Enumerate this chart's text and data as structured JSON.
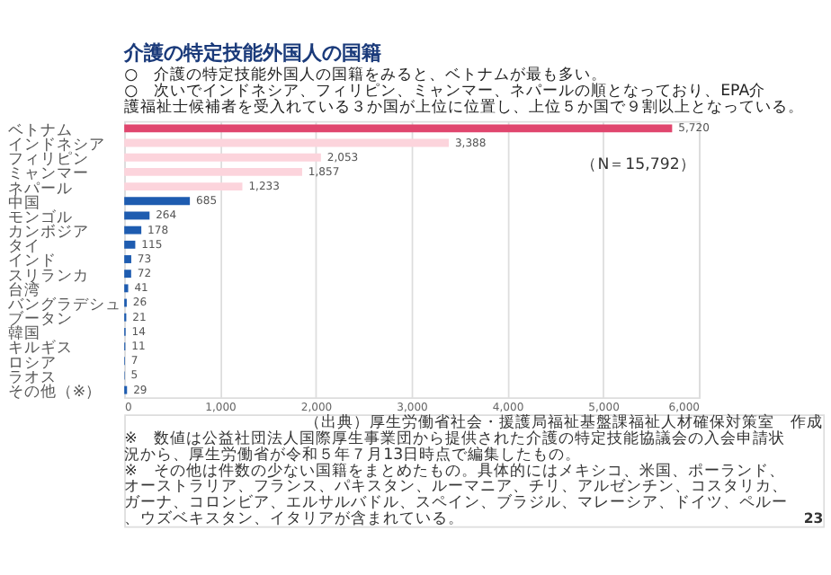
{
  "chart_data": {
    "type": "bar",
    "orientation": "horizontal",
    "title": "介護の特定技能外国人の国籍",
    "subtitle": [
      "○　介護の特定技能外国人の国籍をみると、ベトナムが最も多い。",
      "○　次いでインドネシア、フィリピン、ミャンマー、ネパールの順となっており、EPA介護福祉士候補者を受入れている３か国が上位に位置し、上位５か国で９割以上となっている。"
    ],
    "categories": [
      "ベトナム",
      "インドネシア",
      "フィリピン",
      "ミャンマー",
      "ネパール",
      "中国",
      "モンゴル",
      "カンボジア",
      "タイ",
      "インド",
      "スリランカ",
      "台湾",
      "バングラデシュ",
      "ブータン",
      "韓国",
      "キルギス",
      "ロシア",
      "ラオス",
      "その他（※）"
    ],
    "values": [
      5720,
      3388,
      2053,
      1857,
      1233,
      685,
      264,
      178,
      115,
      73,
      72,
      41,
      26,
      21,
      14,
      11,
      7,
      5,
      29
    ],
    "colors": [
      "#e0466e",
      "#fcd4dc",
      "#fcd4dc",
      "#fcd4dc",
      "#fcd4dc",
      "#1e5cb0",
      "#1e5cb0",
      "#1e5cb0",
      "#1e5cb0",
      "#1e5cb0",
      "#1e5cb0",
      "#1e5cb0",
      "#1e5cb0",
      "#1e5cb0",
      "#1e5cb0",
      "#1e5cb0",
      "#1e5cb0",
      "#1e5cb0",
      "#1e5cb0"
    ],
    "xlim": [
      0,
      6000
    ],
    "xticks": [
      {
        "value": 0,
        "label": "0"
      },
      {
        "value": 1000,
        "label": "1,000"
      },
      {
        "value": 2000,
        "label": "2,000"
      },
      {
        "value": 3000,
        "label": "3,000"
      },
      {
        "value": 4000,
        "label": "4,000"
      },
      {
        "value": 5000,
        "label": "5,000"
      },
      {
        "value": 6000,
        "label": "6,000"
      }
    ],
    "grid": "x",
    "value_labels": [
      "5,720",
      "3,388",
      "2,053",
      "1,857",
      "1,233",
      "685",
      "264",
      "178",
      "115",
      "73",
      "72",
      "41",
      "26",
      "21",
      "14",
      "11",
      "7",
      "5",
      "29"
    ],
    "annotations": [
      "（N＝15,792）",
      "（出典）厚生労働省社会・援護局福祉基盤課福祉人材確保対策室　作成",
      "※　数値は公益社団法人国際厚生事業団から提供された介護の特定技能協議会の入会申請状況から、厚生労働省が令和５年７月13日時点で編集したもの。",
      "※　その他は件数の少ない国籍をまとめたもの。具体的にはメキシコ、米国、ポーランド、オーストラリア、フランス、パキスタン、ルーマニア、チリ、アルゼンチン、コスタリカ、ガーナ、コロンビア、エルサルバドル、スペイン、ブラジル、マレーシア、ドイツ、ペルー、ウズベキスタン、イタリアが含まれている。",
      "23"
    ]
  }
}
